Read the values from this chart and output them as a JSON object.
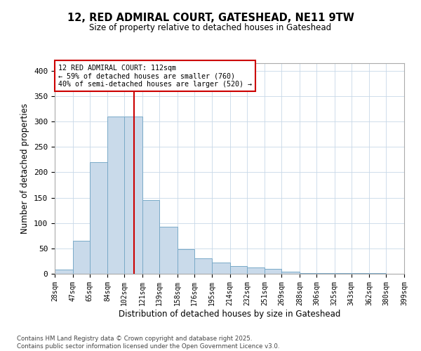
{
  "title": "12, RED ADMIRAL COURT, GATESHEAD, NE11 9TW",
  "subtitle": "Size of property relative to detached houses in Gateshead",
  "xlabel": "Distribution of detached houses by size in Gateshead",
  "ylabel": "Number of detached properties",
  "annotation_line1": "12 RED ADMIRAL COURT: 112sqm",
  "annotation_line2": "← 59% of detached houses are smaller (760)",
  "annotation_line3": "40% of semi-detached houses are larger (520) →",
  "property_value": 112,
  "bin_edges": [
    28,
    47,
    65,
    84,
    102,
    121,
    139,
    158,
    176,
    195,
    214,
    232,
    251,
    269,
    288,
    306,
    325,
    343,
    362,
    380,
    399
  ],
  "bar_heights": [
    8,
    65,
    220,
    310,
    310,
    145,
    93,
    48,
    30,
    22,
    15,
    12,
    10,
    4,
    2,
    2,
    1,
    1,
    1,
    0
  ],
  "bar_color": "#c9daea",
  "bar_edge_color": "#7aaac8",
  "vline_color": "#cc0000",
  "vline_x": 112,
  "annotation_box_edge_color": "#cc0000",
  "background_color": "#ffffff",
  "grid_color": "#c8d8e8",
  "footer_line1": "Contains HM Land Registry data © Crown copyright and database right 2025.",
  "footer_line2": "Contains public sector information licensed under the Open Government Licence v3.0.",
  "ylim": [
    0,
    415
  ],
  "yticks": [
    0,
    50,
    100,
    150,
    200,
    250,
    300,
    350,
    400
  ]
}
